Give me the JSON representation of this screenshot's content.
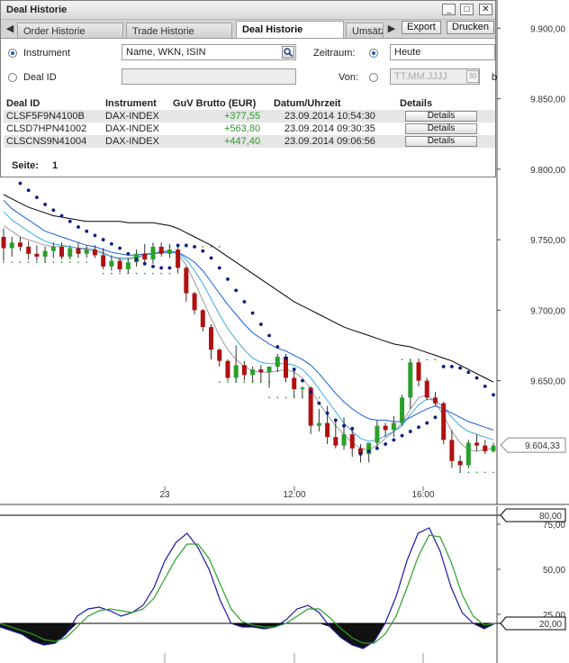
{
  "dialog": {
    "title": "Deal Historie",
    "window_buttons": {
      "minimize": "_",
      "maximize": "□",
      "close": "✕"
    },
    "tabs": [
      {
        "label": "Order Historie",
        "active": false
      },
      {
        "label": "Trade Historie",
        "active": false
      },
      {
        "label": "Deal Historie",
        "active": true
      },
      {
        "label": "Umsätze",
        "active": false
      }
    ],
    "toolbar": {
      "export_label": "Export",
      "print_label": "Drucken"
    },
    "filter": {
      "instrument_label": "Instrument",
      "instrument_placeholder": "Name, WKN, ISIN",
      "dealid_label": "Deal ID",
      "zeitraum_label": "Zeitraum:",
      "zeitraum_value": "Heute",
      "von_label": "Von:",
      "von_placeholder": "TT.MM.JJJJ",
      "bis_label_fragment": "b",
      "calendar_label": "30",
      "selected": "instrument"
    },
    "table": {
      "headers": [
        "Deal ID",
        "Instrument",
        "GuV Brutto (EUR)",
        "Datum/Uhrzeit",
        "Details"
      ],
      "rows": [
        {
          "deal_id": "CLSF5F9N4100B",
          "instrument": "DAX-INDEX",
          "guv": "+377,55",
          "datetime": "23.09.2014 10:54:30",
          "details": "Details"
        },
        {
          "deal_id": "CLSD7HPN41002",
          "instrument": "DAX-INDEX",
          "guv": "+563,80",
          "datetime": "23.09.2014 09:30:35",
          "details": "Details"
        },
        {
          "deal_id": "CLSCNS9N41004",
          "instrument": "DAX-INDEX",
          "guv": "+447,40",
          "datetime": "23.09.2014 09:06:56",
          "details": "Details"
        }
      ]
    },
    "page_label": "Seite:",
    "page_value": "1"
  },
  "chart_data": [
    {
      "type": "candlestick",
      "title": "",
      "y_ticks": [
        "9.900,00",
        "9.850,00",
        "9.800,00",
        "9.750,00",
        "9.700,00",
        "9.650,00"
      ],
      "ylim": [
        9575,
        9920
      ],
      "x_ticks": [
        "23",
        "12:00",
        "16:00"
      ],
      "last_price_label": "9.604,33",
      "last_price": 9604.33,
      "colors": {
        "up": "#2aa02a",
        "down": "#b01010",
        "psar": "#0a1a80",
        "ma_long": "#000000",
        "ma_mid": "#1f5bd8",
        "ma_short": "#3aa8e8",
        "ma_grey": "#9a9a9a"
      },
      "candles": [
        {
          "o": 9752,
          "h": 9758,
          "l": 9735,
          "c": 9744
        },
        {
          "o": 9744,
          "h": 9752,
          "l": 9738,
          "c": 9748
        },
        {
          "o": 9748,
          "h": 9752,
          "l": 9742,
          "c": 9745
        },
        {
          "o": 9745,
          "h": 9749,
          "l": 9736,
          "c": 9740
        },
        {
          "o": 9740,
          "h": 9746,
          "l": 9735,
          "c": 9738
        },
        {
          "o": 9738,
          "h": 9745,
          "l": 9734,
          "c": 9742
        },
        {
          "o": 9742,
          "h": 9748,
          "l": 9737,
          "c": 9745
        },
        {
          "o": 9745,
          "h": 9748,
          "l": 9736,
          "c": 9738
        },
        {
          "o": 9738,
          "h": 9746,
          "l": 9736,
          "c": 9744
        },
        {
          "o": 9744,
          "h": 9748,
          "l": 9737,
          "c": 9740
        },
        {
          "o": 9740,
          "h": 9746,
          "l": 9737,
          "c": 9743
        },
        {
          "o": 9743,
          "h": 9746,
          "l": 9737,
          "c": 9739
        },
        {
          "o": 9739,
          "h": 9744,
          "l": 9729,
          "c": 9731
        },
        {
          "o": 9731,
          "h": 9739,
          "l": 9728,
          "c": 9735
        },
        {
          "o": 9735,
          "h": 9737,
          "l": 9727,
          "c": 9729
        },
        {
          "o": 9729,
          "h": 9737,
          "l": 9726,
          "c": 9734
        },
        {
          "o": 9734,
          "h": 9743,
          "l": 9731,
          "c": 9740
        },
        {
          "o": 9740,
          "h": 9747,
          "l": 9734,
          "c": 9736
        },
        {
          "o": 9736,
          "h": 9748,
          "l": 9733,
          "c": 9745
        },
        {
          "o": 9745,
          "h": 9748,
          "l": 9738,
          "c": 9740
        },
        {
          "o": 9740,
          "h": 9747,
          "l": 9737,
          "c": 9743
        },
        {
          "o": 9743,
          "h": 9747,
          "l": 9726,
          "c": 9730
        },
        {
          "o": 9730,
          "h": 9731,
          "l": 9706,
          "c": 9712
        },
        {
          "o": 9712,
          "h": 9713,
          "l": 9697,
          "c": 9700
        },
        {
          "o": 9700,
          "h": 9701,
          "l": 9685,
          "c": 9688
        },
        {
          "o": 9688,
          "h": 9690,
          "l": 9665,
          "c": 9672
        },
        {
          "o": 9672,
          "h": 9673,
          "l": 9660,
          "c": 9664
        },
        {
          "o": 9664,
          "h": 9665,
          "l": 9650,
          "c": 9652
        },
        {
          "o": 9652,
          "h": 9675,
          "l": 9649,
          "c": 9661
        },
        {
          "o": 9661,
          "h": 9664,
          "l": 9650,
          "c": 9654
        },
        {
          "o": 9654,
          "h": 9660,
          "l": 9649,
          "c": 9658
        },
        {
          "o": 9658,
          "h": 9661,
          "l": 9649,
          "c": 9656
        },
        {
          "o": 9656,
          "h": 9660,
          "l": 9645,
          "c": 9660
        },
        {
          "o": 9660,
          "h": 9669,
          "l": 9656,
          "c": 9667
        },
        {
          "o": 9667,
          "h": 9669,
          "l": 9649,
          "c": 9652
        },
        {
          "o": 9652,
          "h": 9658,
          "l": 9638,
          "c": 9644
        },
        {
          "o": 9644,
          "h": 9646,
          "l": 9638,
          "c": 9645
        },
        {
          "o": 9645,
          "h": 9646,
          "l": 9612,
          "c": 9618
        },
        {
          "o": 9618,
          "h": 9630,
          "l": 9614,
          "c": 9620
        },
        {
          "o": 9620,
          "h": 9632,
          "l": 9605,
          "c": 9610
        },
        {
          "o": 9610,
          "h": 9621,
          "l": 9602,
          "c": 9604
        },
        {
          "o": 9604,
          "h": 9624,
          "l": 9601,
          "c": 9612
        },
        {
          "o": 9612,
          "h": 9616,
          "l": 9596,
          "c": 9602
        },
        {
          "o": 9602,
          "h": 9605,
          "l": 9592,
          "c": 9598
        },
        {
          "o": 9598,
          "h": 9606,
          "l": 9592,
          "c": 9606
        },
        {
          "o": 9606,
          "h": 9622,
          "l": 9601,
          "c": 9618
        },
        {
          "o": 9618,
          "h": 9620,
          "l": 9610,
          "c": 9615
        },
        {
          "o": 9615,
          "h": 9625,
          "l": 9610,
          "c": 9620
        },
        {
          "o": 9620,
          "h": 9640,
          "l": 9618,
          "c": 9638
        },
        {
          "o": 9638,
          "h": 9665,
          "l": 9630,
          "c": 9663
        },
        {
          "o": 9663,
          "h": 9665,
          "l": 9646,
          "c": 9650
        },
        {
          "o": 9650,
          "h": 9652,
          "l": 9636,
          "c": 9638
        },
        {
          "o": 9638,
          "h": 9642,
          "l": 9632,
          "c": 9634
        },
        {
          "o": 9634,
          "h": 9635,
          "l": 9605,
          "c": 9608
        },
        {
          "o": 9608,
          "h": 9615,
          "l": 9588,
          "c": 9593
        },
        {
          "o": 9593,
          "h": 9597,
          "l": 9585,
          "c": 9590
        },
        {
          "o": 9590,
          "h": 9608,
          "l": 9588,
          "c": 9606
        },
        {
          "o": 9606,
          "h": 9612,
          "l": 9600,
          "c": 9604
        },
        {
          "o": 9604,
          "h": 9608,
          "l": 9598,
          "c": 9600
        },
        {
          "o": 9600,
          "h": 9606,
          "l": 9599,
          "c": 9604
        }
      ],
      "ma_long": [
        9782,
        9779,
        9776,
        9773,
        9771,
        9769,
        9767,
        9766,
        9765,
        9764,
        9763,
        9763,
        9763,
        9763,
        9763,
        9762,
        9762,
        9762,
        9762,
        9761,
        9760,
        9758,
        9755,
        9752,
        9749,
        9746,
        9742,
        9738,
        9734,
        9730,
        9726,
        9722,
        9718,
        9714,
        9710,
        9706,
        9703,
        9700,
        9697,
        9694,
        9691,
        9688,
        9686,
        9684,
        9682,
        9680,
        9678,
        9676,
        9675,
        9674,
        9672,
        9670,
        9668,
        9666,
        9664,
        9661,
        9658,
        9655,
        9652,
        9649
      ],
      "ma_mid": [
        9778,
        9772,
        9768,
        9764,
        9760,
        9756,
        9754,
        9752,
        9750,
        9748,
        9746,
        9745,
        9743,
        9741,
        9740,
        9739,
        9739,
        9740,
        9740,
        9741,
        9741,
        9741,
        9738,
        9734,
        9728,
        9720,
        9712,
        9704,
        9697,
        9690,
        9684,
        9680,
        9676,
        9673,
        9671,
        9668,
        9665,
        9661,
        9655,
        9648,
        9641,
        9635,
        9630,
        9626,
        9623,
        9622,
        9622,
        9621,
        9621,
        9624,
        9627,
        9630,
        9632,
        9630,
        9627,
        9624,
        9621,
        9619,
        9617,
        9615
      ],
      "ma_short": [
        9770,
        9764,
        9760,
        9756,
        9752,
        9749,
        9747,
        9746,
        9745,
        9744,
        9743,
        9742,
        9740,
        9738,
        9737,
        9737,
        9738,
        9739,
        9740,
        9741,
        9742,
        9741,
        9736,
        9728,
        9719,
        9708,
        9697,
        9687,
        9679,
        9672,
        9666,
        9663,
        9662,
        9662,
        9662,
        9661,
        9658,
        9652,
        9644,
        9636,
        9628,
        9620,
        9614,
        9609,
        9607,
        9608,
        9611,
        9614,
        9618,
        9626,
        9633,
        9637,
        9636,
        9631,
        9624,
        9618,
        9614,
        9612,
        9610,
        9608
      ],
      "ma_grey": [
        9760,
        9756,
        9752,
        9750,
        9748,
        9746,
        9745,
        9745,
        9745,
        9744,
        9744,
        9743,
        9741,
        9738,
        9736,
        9736,
        9737,
        9739,
        9740,
        9742,
        9742,
        9740,
        9732,
        9720,
        9707,
        9694,
        9682,
        9672,
        9665,
        9660,
        9657,
        9656,
        9656,
        9657,
        9658,
        9656,
        9652,
        9644,
        9634,
        9626,
        9618,
        9612,
        9606,
        9602,
        9601,
        9604,
        9609,
        9614,
        9620,
        9630,
        9638,
        9640,
        9635,
        9625,
        9614,
        9606,
        9601,
        9600,
        9601,
        9602
      ],
      "psar": [
        9800,
        9796,
        9790,
        9785,
        9780,
        9775,
        9771,
        9767,
        9763,
        9759,
        9756,
        9753,
        9750,
        9747,
        9744,
        9740,
        9736,
        9733,
        9731,
        9730,
        9730,
        9746,
        9746,
        9745,
        9742,
        9737,
        9730,
        9722,
        9714,
        9706,
        9698,
        9690,
        9682,
        9674,
        9666,
        9658,
        9650,
        9642,
        9634,
        9627,
        9622,
        9618,
        9616,
        9598,
        9600,
        9602,
        9605,
        9608,
        9611,
        9614,
        9617,
        9620,
        9624,
        9660,
        9660,
        9659,
        9656,
        9652,
        9646,
        9640
      ],
      "psar_side": [
        1,
        1,
        1,
        1,
        1,
        1,
        1,
        1,
        1,
        1,
        1,
        1,
        1,
        1,
        1,
        1,
        1,
        1,
        1,
        1,
        0,
        1,
        1,
        1,
        1,
        1,
        1,
        1,
        1,
        1,
        1,
        1,
        1,
        1,
        1,
        1,
        1,
        1,
        1,
        1,
        1,
        1,
        1,
        0,
        0,
        0,
        0,
        0,
        0,
        0,
        0,
        0,
        0,
        1,
        1,
        1,
        1,
        1,
        1,
        1
      ],
      "support_dots": [
        {
          "from": 0,
          "to": 10,
          "y": 9734
        },
        {
          "from": 12,
          "to": 20,
          "y": 9726
        },
        {
          "from": 20,
          "to": 26,
          "y": 9745
        },
        {
          "from": 26,
          "to": 32,
          "y": 9649
        },
        {
          "from": 32,
          "to": 38,
          "y": 9638
        },
        {
          "from": 48,
          "to": 52,
          "y": 9665
        },
        {
          "from": 55,
          "to": 59,
          "y": 9585
        }
      ]
    },
    {
      "type": "line",
      "title": "",
      "y_ticks": [
        "75,00",
        "50,00",
        "25,00"
      ],
      "ylim": [
        0,
        85
      ],
      "level_labels": [
        "80,00",
        "20,00"
      ],
      "levels": [
        80,
        20
      ],
      "series": [
        {
          "values": [
            18,
            16,
            14,
            10,
            8,
            9,
            14,
            24,
            28,
            29,
            27,
            24,
            26,
            30,
            40,
            55,
            65,
            70,
            62,
            50,
            33,
            20,
            18,
            18,
            17,
            18,
            22,
            28,
            30,
            26,
            18,
            12,
            8,
            6,
            10,
            20,
            35,
            55,
            70,
            73,
            60,
            40,
            26,
            20,
            17,
            20
          ],
          "color": "#1a1aa0"
        },
        {
          "values": [
            20,
            18,
            16,
            14,
            11,
            10,
            12,
            18,
            24,
            27,
            28,
            27,
            26,
            28,
            34,
            45,
            56,
            64,
            64,
            56,
            42,
            28,
            21,
            19,
            18,
            18,
            20,
            24,
            28,
            28,
            23,
            17,
            12,
            9,
            9,
            14,
            24,
            40,
            57,
            69,
            68,
            54,
            36,
            24,
            19,
            20
          ],
          "color": "#2aa02a"
        }
      ]
    }
  ]
}
